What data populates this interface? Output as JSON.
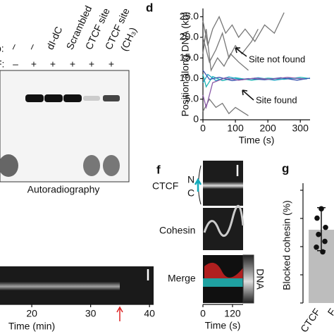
{
  "panel_c": {
    "row_labels": [
      "b:",
      "F:"
    ],
    "row_b": [
      "–",
      "–",
      "dI-dC",
      "Scrambled",
      "CTCF site",
      "CTCF site"
    ],
    "row_b_sublabel": "(CH₃)",
    "row_f": [
      "–",
      "+",
      "+",
      "+",
      "+",
      "+"
    ],
    "caption": "Autoradiography"
  },
  "panel_d": {
    "label": "d",
    "ylabel": "Position along DNA (kb)",
    "xlabel": "Time (s)",
    "xlim": [
      0,
      330
    ],
    "ylim": [
      0,
      27
    ],
    "xticks": [
      0,
      100,
      200,
      300
    ],
    "yticks": [
      0,
      {
        "value": 5,
        "label": "5.0"
      },
      {
        "value": 10,
        "label": "10.0"
      },
      {
        "value": 15,
        "label": "15.0"
      },
      {
        "value": 20,
        "label": "20.0"
      },
      {
        "value": 25,
        "label": "25.0"
      }
    ],
    "annotations": [
      "Site not found",
      "Site found"
    ],
    "traces": [
      {
        "color": "#777777",
        "x": [
          0,
          15,
          30,
          50,
          70,
          90,
          110,
          130,
          160,
          190,
          220,
          250
        ],
        "y": [
          24,
          18,
          22,
          25,
          21,
          23,
          20,
          22,
          19,
          23,
          21,
          26
        ]
      },
      {
        "color": "#777777",
        "x": [
          0,
          20,
          40,
          60,
          80,
          100,
          120,
          150,
          170
        ],
        "y": [
          20,
          14,
          17,
          21,
          15,
          18,
          16,
          19,
          22
        ]
      },
      {
        "color": "#777777",
        "x": [
          0,
          10,
          25,
          45,
          65,
          85,
          110,
          140
        ],
        "y": [
          16,
          22,
          12,
          15,
          13,
          16,
          14,
          12
        ]
      },
      {
        "color": "#777777",
        "x": [
          0,
          20,
          40,
          60,
          80,
          100,
          120,
          140
        ],
        "y": [
          2,
          5,
          3,
          4,
          1.5,
          3,
          2,
          1
        ]
      },
      {
        "color": "#1fb5b5",
        "x": [
          0,
          10,
          30,
          60,
          100,
          150,
          200,
          250,
          300,
          330
        ],
        "y": [
          11,
          8,
          10.5,
          9.5,
          10.2,
          9.6,
          10.1,
          9.8,
          10.3,
          10
        ]
      },
      {
        "color": "#1fa5c8",
        "x": [
          0,
          15,
          40,
          80,
          120,
          170,
          220,
          270,
          320
        ],
        "y": [
          9,
          11,
          9.5,
          10.4,
          9.7,
          10.2,
          9.6,
          10.1,
          9.9
        ]
      },
      {
        "color": "#3a55b0",
        "x": [
          0,
          20,
          50,
          90,
          140,
          190,
          240,
          290,
          330
        ],
        "y": [
          12,
          9.8,
          10.3,
          9.5,
          10,
          9.7,
          10.2,
          9.6,
          10.1
        ]
      },
      {
        "color": "#8a5aa8",
        "x": [
          0,
          10,
          30,
          70,
          110,
          160,
          210,
          260,
          310
        ],
        "y": [
          6,
          3,
          9,
          10.2,
          9.6,
          10.1,
          9.8,
          10.3,
          9.9
        ]
      }
    ]
  },
  "panel_e": {
    "xlabel": "Time (min)",
    "xlim": [
      14.6,
      40.7
    ],
    "xticks": [
      20,
      30,
      40
    ]
  },
  "panel_f": {
    "label": "f",
    "channels": [
      "CTCF",
      "Cohesin",
      "Merge"
    ],
    "n_label": "N",
    "c_label": "C",
    "side_label": "DNA",
    "xlabel": "Time (s)",
    "xlim": [
      0,
      163
    ],
    "xticks": [
      0,
      120
    ]
  },
  "panel_g": {
    "label": "g",
    "ylabel": "Blocked cohesin (%)",
    "categories": [
      "CTCF",
      "F"
    ],
    "ylim": [
      0,
      100
    ],
    "bar": 63,
    "error": [
      45,
      82
    ],
    "points": [
      81,
      73,
      65,
      59,
      53,
      48,
      44
    ]
  }
}
